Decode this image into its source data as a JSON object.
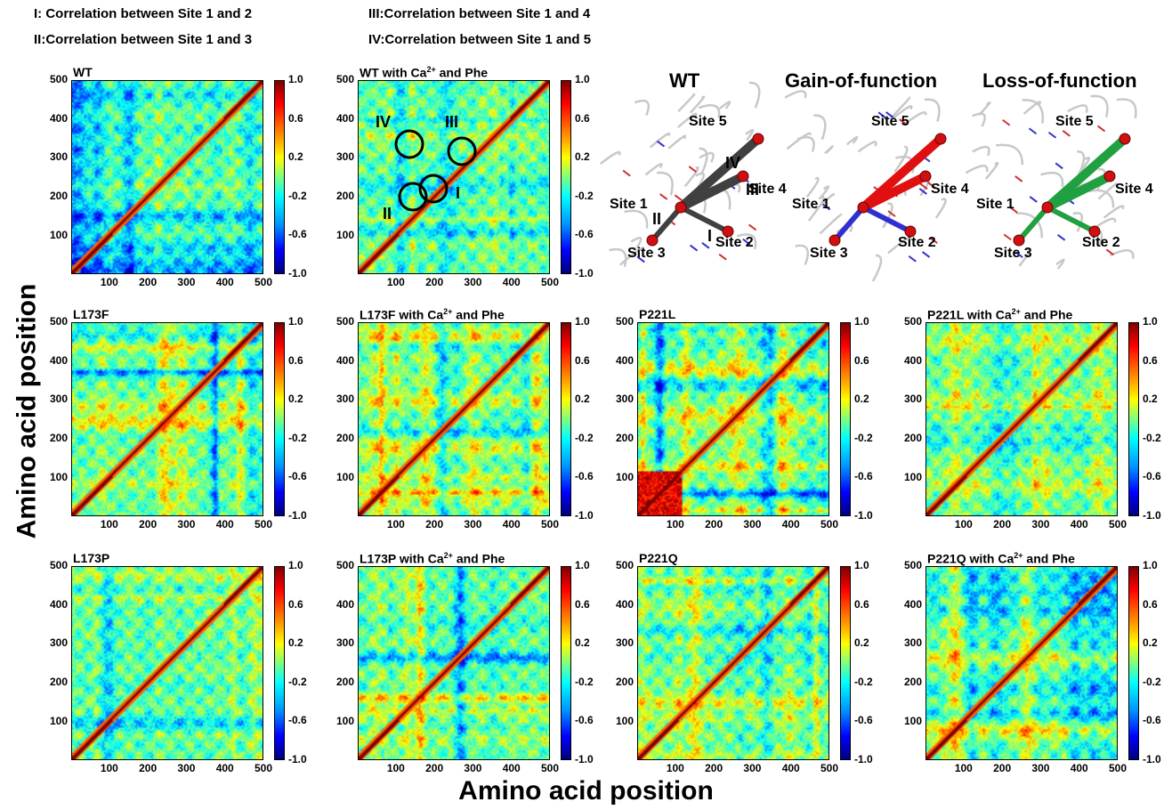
{
  "legend": [
    "I: Correlation between Site 1 and 2",
    "III:Correlation between Site 1 and 4",
    "II:Correlation between Site 1 and 3",
    "IV:Correlation between Site 1 and 5"
  ],
  "axis_labels": {
    "y": "Amino acid position",
    "x": "Amino acid position"
  },
  "structures": {
    "titles": [
      "WT",
      "Gain-of-function",
      "Loss-of-function"
    ],
    "site_labels": [
      "Site 5",
      "Site 4",
      "Site 1",
      "Site 2",
      "Site 3"
    ],
    "roman": [
      "IV",
      "III",
      "II",
      "I"
    ],
    "colors": {
      "wt": "#404040",
      "gain_hi": "#e01010",
      "gain_lo": "#3030d0",
      "loss": "#20a040"
    }
  },
  "circle_labels": [
    "IV",
    "III",
    "II",
    "I"
  ],
  "chart_data": [
    {
      "type": "heatmap",
      "title": "WT",
      "title_sup": "",
      "title_suffix": "",
      "xlim": [
        1,
        500
      ],
      "ylim": [
        1,
        500
      ],
      "x_ticks": [
        100,
        200,
        300,
        400,
        500
      ],
      "y_ticks": [
        100,
        200,
        300,
        400,
        500
      ],
      "colorbar_ticks": [
        "1.0",
        "0.6",
        "0.2",
        "-0.2",
        "-0.6",
        "-1.0"
      ],
      "colorbar_range": [
        -1.0,
        1.0
      ]
    },
    {
      "type": "heatmap",
      "title": "WT with Ca",
      "title_sup": "2+",
      "title_suffix": "and Phe",
      "xlim": [
        1,
        500
      ],
      "ylim": [
        1,
        500
      ],
      "x_ticks": [
        100,
        200,
        300,
        400,
        500
      ],
      "y_ticks": [
        100,
        200,
        300,
        400,
        500
      ],
      "colorbar_ticks": [
        "1.0",
        "0.6",
        "0.2",
        "-0.2",
        "-0.6",
        "-1.0"
      ],
      "colorbar_range": [
        -1.0,
        1.0
      ]
    },
    {
      "type": "heatmap",
      "title": "L173F",
      "title_sup": "",
      "title_suffix": "",
      "xlim": [
        1,
        500
      ],
      "ylim": [
        1,
        500
      ],
      "x_ticks": [
        100,
        200,
        300,
        400,
        500
      ],
      "y_ticks": [
        100,
        200,
        300,
        400,
        500
      ],
      "colorbar_ticks": [
        "1.0",
        "0.6",
        "0.2",
        "-0.2",
        "-0.6",
        "-1.0"
      ],
      "colorbar_range": [
        -1.0,
        1.0
      ]
    },
    {
      "type": "heatmap",
      "title": "L173F with Ca",
      "title_sup": "2+",
      "title_suffix": "and Phe",
      "xlim": [
        1,
        500
      ],
      "ylim": [
        1,
        500
      ],
      "x_ticks": [
        100,
        200,
        300,
        400,
        500
      ],
      "y_ticks": [
        100,
        200,
        300,
        400,
        500
      ],
      "colorbar_ticks": [
        "1.0",
        "0.6",
        "0.2",
        "-0.2",
        "-0.6",
        "-1.0"
      ],
      "colorbar_range": [
        -1.0,
        1.0
      ]
    },
    {
      "type": "heatmap",
      "title": "P221L",
      "title_sup": "",
      "title_suffix": "",
      "xlim": [
        1,
        500
      ],
      "ylim": [
        1,
        500
      ],
      "x_ticks": [
        100,
        200,
        300,
        400,
        500
      ],
      "y_ticks": [
        100,
        200,
        300,
        400,
        500
      ],
      "colorbar_ticks": [
        "1.0",
        "0.6",
        "0.2",
        "-0.2",
        "-0.6",
        "-1.0"
      ],
      "colorbar_range": [
        -1.0,
        1.0
      ]
    },
    {
      "type": "heatmap",
      "title": "P221L with Ca",
      "title_sup": "2+",
      "title_suffix": "and Phe",
      "xlim": [
        1,
        500
      ],
      "ylim": [
        1,
        500
      ],
      "x_ticks": [
        100,
        200,
        300,
        400,
        500
      ],
      "y_ticks": [
        100,
        200,
        300,
        400,
        500
      ],
      "colorbar_ticks": [
        "1.0",
        "0.6",
        "0.2",
        "-0.2",
        "-0.6",
        "-1.0"
      ],
      "colorbar_range": [
        -1.0,
        1.0
      ]
    },
    {
      "type": "heatmap",
      "title": "L173P",
      "title_sup": "",
      "title_suffix": "",
      "xlim": [
        1,
        500
      ],
      "ylim": [
        1,
        500
      ],
      "x_ticks": [
        100,
        200,
        300,
        400,
        500
      ],
      "y_ticks": [
        100,
        200,
        300,
        400,
        500
      ],
      "colorbar_ticks": [
        "1.0",
        "0.6",
        "0.2",
        "-0.2",
        "-0.6",
        "-1.0"
      ],
      "colorbar_range": [
        -1.0,
        1.0
      ]
    },
    {
      "type": "heatmap",
      "title": "L173P with Ca",
      "title_sup": "2+",
      "title_suffix": "and Phe",
      "xlim": [
        1,
        500
      ],
      "ylim": [
        1,
        500
      ],
      "x_ticks": [
        100,
        200,
        300,
        400,
        500
      ],
      "y_ticks": [
        100,
        200,
        300,
        400,
        500
      ],
      "colorbar_ticks": [
        "1.0",
        "0.6",
        "0.2",
        "-0.2",
        "-0.6",
        "-1.0"
      ],
      "colorbar_range": [
        -1.0,
        1.0
      ]
    },
    {
      "type": "heatmap",
      "title": "P221Q",
      "title_sup": "",
      "title_suffix": "",
      "xlim": [
        1,
        500
      ],
      "ylim": [
        1,
        500
      ],
      "x_ticks": [
        100,
        200,
        300,
        400,
        500
      ],
      "y_ticks": [
        100,
        200,
        300,
        400,
        500
      ],
      "colorbar_ticks": [
        "1.0",
        "0.6",
        "0.2",
        "-0.2",
        "-0.6",
        "-1.0"
      ],
      "colorbar_range": [
        -1.0,
        1.0
      ]
    },
    {
      "type": "heatmap",
      "title": "P221Q with Ca",
      "title_sup": "2+",
      "title_suffix": "and Phe",
      "xlim": [
        1,
        500
      ],
      "ylim": [
        1,
        500
      ],
      "x_ticks": [
        100,
        200,
        300,
        400,
        500
      ],
      "y_ticks": [
        100,
        200,
        300,
        400,
        500
      ],
      "colorbar_ticks": [
        "1.0",
        "0.6",
        "0.2",
        "-0.2",
        "-0.6",
        "-1.0"
      ],
      "colorbar_range": [
        -1.0,
        1.0
      ]
    }
  ]
}
